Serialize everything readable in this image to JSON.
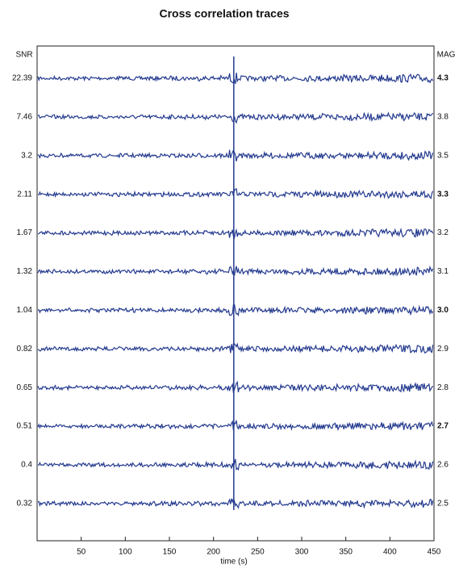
{
  "chart_data": {
    "type": "traces",
    "title": "Cross correlation traces",
    "xlabel": "time (s)",
    "left_label": "SNR",
    "right_label": "MAG",
    "xlim": [
      0,
      450
    ],
    "xticks": [
      50,
      100,
      150,
      200,
      250,
      300,
      350,
      400,
      450
    ],
    "snr": [
      "22.39",
      "7.46",
      "3.2",
      "2.11",
      "1.67",
      "1.32",
      "1.04",
      "0.82",
      "0.65",
      "0.51",
      "0.4",
      "0.32"
    ],
    "mag": [
      "4.3",
      "3.8",
      "3.5",
      "3.3",
      "3.2",
      "3.1",
      "3.0",
      "2.9",
      "2.8",
      "2.7",
      "2.6",
      "2.5"
    ],
    "event_time": 223,
    "color": "#243a8f"
  }
}
